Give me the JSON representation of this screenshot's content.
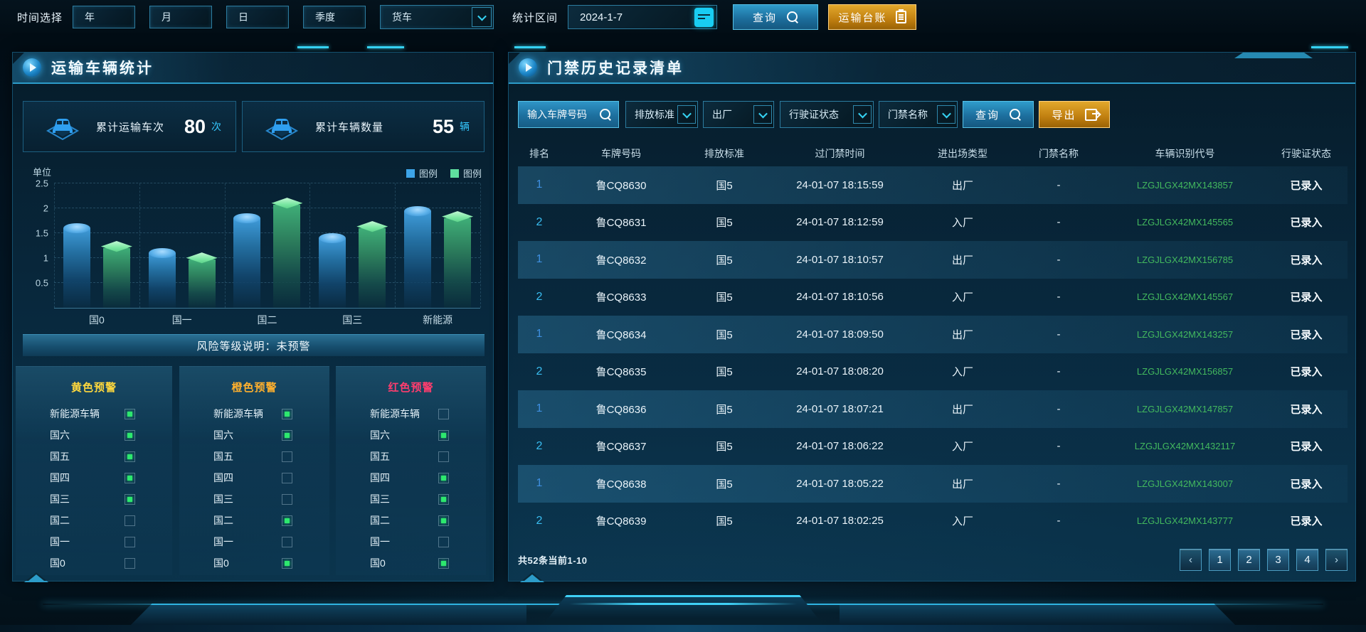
{
  "colors": {
    "accent_cyan": "#2fb3e0",
    "button_blue": "#1d6f9e",
    "button_orange": "#c07f10",
    "vin_green": "#43b95e",
    "rank_blue": "#3f8fe0",
    "rank_cyan": "#39bdf0",
    "warning_yellow": "#ffd83d",
    "warning_orange": "#ffb02e",
    "warning_red": "#ff3d6e",
    "checkbox_green": "#2de86e"
  },
  "topbar": {
    "time_label": "时间选择",
    "time_buttons": [
      "年",
      "月",
      "日",
      "季度"
    ],
    "vehicle_select_value": "货车",
    "range_label": "统计区间",
    "date_value": "2024-1-7",
    "query_label": "查询",
    "ledger_label": "运输台账"
  },
  "left_panel": {
    "title": "运输车辆统计",
    "stats": [
      {
        "label": "累计运输车次",
        "value": "80",
        "unit": "次"
      },
      {
        "label": "累计车辆数量",
        "value": "55",
        "unit": "辆"
      }
    ],
    "risk_note": "风险等级说明：未预警",
    "warnings": [
      {
        "title": "黄色预警",
        "color": "#ffd83d",
        "items": [
          {
            "label": "新能源车辆",
            "checked": true
          },
          {
            "label": "国六",
            "checked": true
          },
          {
            "label": "国五",
            "checked": true
          },
          {
            "label": "国四",
            "checked": true
          },
          {
            "label": "国三",
            "checked": true
          },
          {
            "label": "国二",
            "checked": false
          },
          {
            "label": "国一",
            "checked": false
          },
          {
            "label": "国0",
            "checked": false
          }
        ]
      },
      {
        "title": "橙色预警",
        "color": "#ffb02e",
        "items": [
          {
            "label": "新能源车辆",
            "checked": true
          },
          {
            "label": "国六",
            "checked": true
          },
          {
            "label": "国五",
            "checked": false
          },
          {
            "label": "国四",
            "checked": false
          },
          {
            "label": "国三",
            "checked": false
          },
          {
            "label": "国二",
            "checked": true
          },
          {
            "label": "国一",
            "checked": false
          },
          {
            "label": "国0",
            "checked": true
          }
        ]
      },
      {
        "title": "红色预警",
        "color": "#ff3d6e",
        "items": [
          {
            "label": "新能源车辆",
            "checked": false
          },
          {
            "label": "国六",
            "checked": true
          },
          {
            "label": "国五",
            "checked": false
          },
          {
            "label": "国四",
            "checked": true
          },
          {
            "label": "国三",
            "checked": true
          },
          {
            "label": "国二",
            "checked": true
          },
          {
            "label": "国一",
            "checked": false
          },
          {
            "label": "国0",
            "checked": true
          }
        ]
      }
    ]
  },
  "chart_data": {
    "type": "bar",
    "title": "",
    "unit_label": "单位",
    "categories": [
      "国0",
      "国一",
      "国二",
      "国三",
      "新能源"
    ],
    "series": [
      {
        "name": "图例",
        "color": "#3da4e8",
        "style": "cylinder-blue",
        "values": [
          1.6,
          1.1,
          1.8,
          1.4,
          1.95
        ]
      },
      {
        "name": "图例",
        "color": "#5fe0a0",
        "style": "cube-green",
        "values": [
          1.2,
          0.97,
          2.07,
          1.6,
          1.8
        ]
      }
    ],
    "ylim": [
      0,
      2.5
    ],
    "yticks": [
      0.5,
      1,
      1.5,
      2,
      2.5
    ],
    "grid": true,
    "legend_position": "top-right"
  },
  "right_panel": {
    "title": "门禁历史记录清单",
    "filters": {
      "plate_placeholder": "输入车牌号码",
      "dropdowns": [
        "排放标准",
        "出厂",
        "行驶证状态",
        "门禁名称"
      ],
      "query_label": "查询",
      "export_label": "导出"
    },
    "table": {
      "columns": [
        "排名",
        "车牌号码",
        "排放标准",
        "过门禁时间",
        "进出场类型",
        "门禁名称",
        "车辆识别代号",
        "行驶证状态"
      ],
      "rows": [
        [
          "1",
          "鲁CQ8630",
          "国5",
          "24-01-07 18:15:59",
          "出厂",
          "-",
          "LZGJLGX42MX143857",
          "已录入"
        ],
        [
          "2",
          "鲁CQ8631",
          "国5",
          "24-01-07 18:12:59",
          "入厂",
          "-",
          "LZGJLGX42MX145565",
          "已录入"
        ],
        [
          "1",
          "鲁CQ8632",
          "国5",
          "24-01-07 18:10:57",
          "出厂",
          "-",
          "LZGJLGX42MX156785",
          "已录入"
        ],
        [
          "2",
          "鲁CQ8633",
          "国5",
          "24-01-07 18:10:56",
          "入厂",
          "-",
          "LZGJLGX42MX145567",
          "已录入"
        ],
        [
          "1",
          "鲁CQ8634",
          "国5",
          "24-01-07 18:09:50",
          "出厂",
          "-",
          "LZGJLGX42MX143257",
          "已录入"
        ],
        [
          "2",
          "鲁CQ8635",
          "国5",
          "24-01-07 18:08:20",
          "入厂",
          "-",
          "LZGJLGX42MX156857",
          "已录入"
        ],
        [
          "1",
          "鲁CQ8636",
          "国5",
          "24-01-07 18:07:21",
          "出厂",
          "-",
          "LZGJLGX42MX147857",
          "已录入"
        ],
        [
          "2",
          "鲁CQ8637",
          "国5",
          "24-01-07 18:06:22",
          "入厂",
          "-",
          "LZGJLGX42MX1432117",
          "已录入"
        ],
        [
          "1",
          "鲁CQ8638",
          "国5",
          "24-01-07 18:05:22",
          "出厂",
          "-",
          "LZGJLGX42MX143007",
          "已录入"
        ],
        [
          "2",
          "鲁CQ8639",
          "国5",
          "24-01-07 18:02:25",
          "入厂",
          "-",
          "LZGJLGX42MX143777",
          "已录入"
        ]
      ]
    },
    "pagination": {
      "summary": "共52条当前1-10",
      "prev": "‹",
      "pages": [
        "1",
        "2",
        "3",
        "4"
      ],
      "next": "›"
    }
  }
}
